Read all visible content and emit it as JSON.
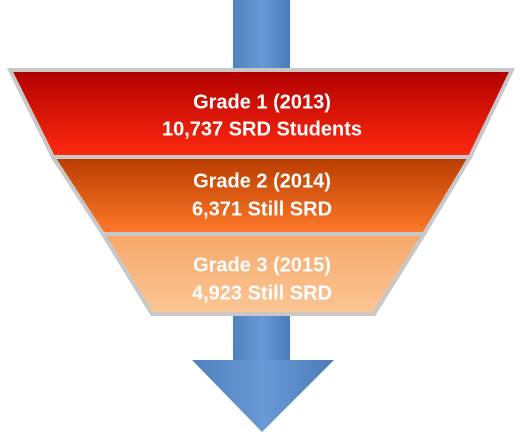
{
  "levels": [
    {
      "title": "Grade 1 (2013)",
      "subtitle": "10,737 SRD Students"
    },
    {
      "title": "Grade 2  (2014)",
      "subtitle": "6,371 Still SRD"
    },
    {
      "title": "Grade 3 (2015)",
      "subtitle": "4,923 Still SRD"
    }
  ]
}
